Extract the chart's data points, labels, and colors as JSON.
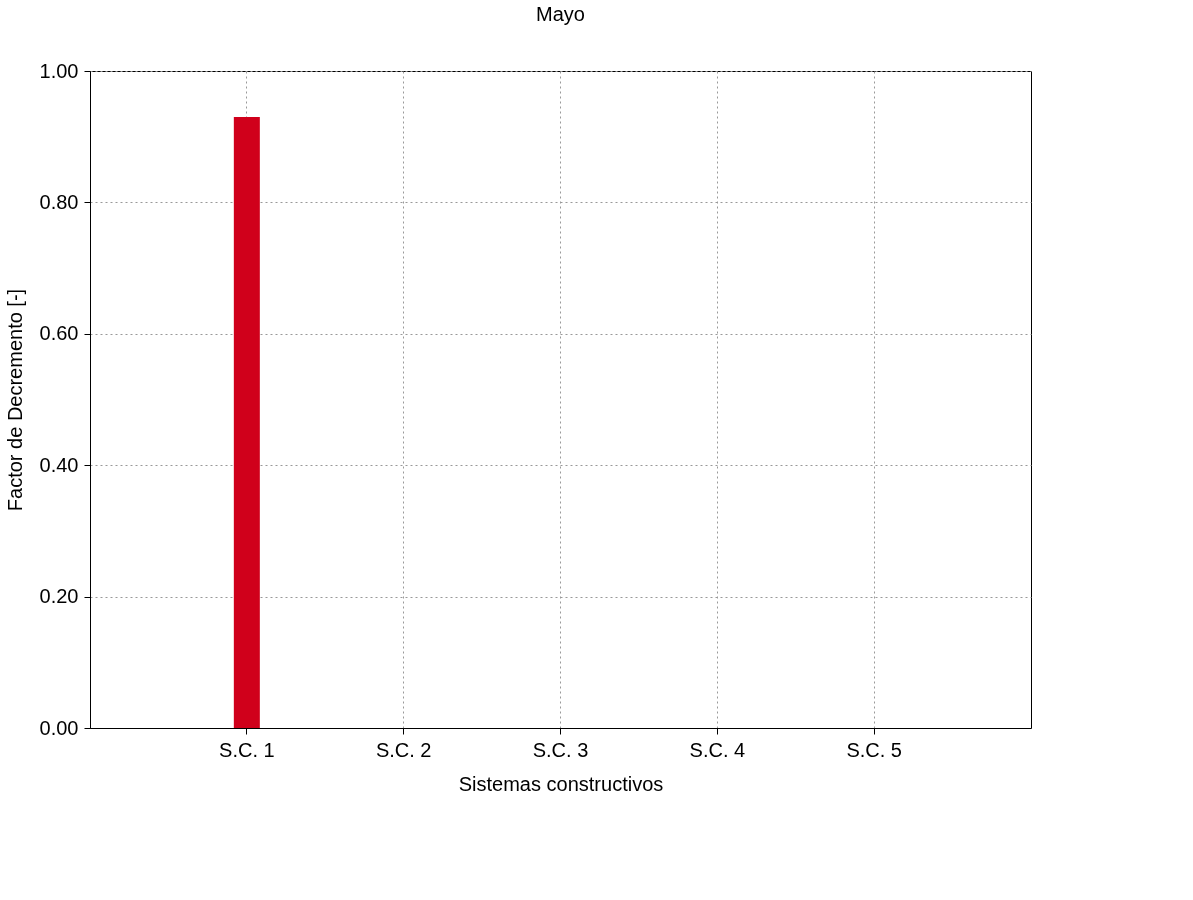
{
  "chart_data": {
    "type": "bar",
    "title": "Mayo",
    "xlabel": "Sistemas constructivos",
    "ylabel": "Factor de Decremento [-]",
    "categories": [
      "S.C. 1",
      "S.C. 2",
      "S.C. 3",
      "S.C. 4",
      "S.C. 5"
    ],
    "values": [
      0.93,
      null,
      null,
      null,
      null
    ],
    "color": "#d0001b",
    "ylim": [
      0,
      1
    ],
    "yticks": [
      {
        "value": 0,
        "label": "0.00"
      },
      {
        "value": 0.2,
        "label": "0.20"
      },
      {
        "value": 0.4,
        "label": "0.40"
      },
      {
        "value": 0.6,
        "label": "0.60"
      },
      {
        "value": 0.8,
        "label": "0.80"
      },
      {
        "value": 1,
        "label": "1.00"
      }
    ],
    "grid": true
  }
}
